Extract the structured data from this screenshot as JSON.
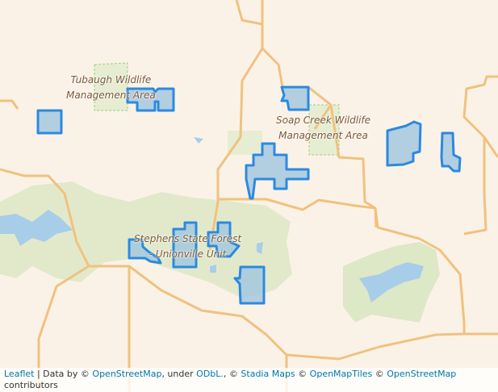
{
  "map": {
    "labels": [
      {
        "line1": "Tubaugh Wildlife",
        "line2": "Management Area"
      },
      {
        "line1": "Soap Creek Wildlife",
        "line2": "Management Area"
      },
      {
        "line1": "Stephens State Forest",
        "line2": "- Unionville Unit"
      }
    ],
    "colors": {
      "background": "#fbf2e7",
      "road": "#f0c27f",
      "park": "#dde8c6",
      "water": "#a8cde9",
      "polygon_fill": "#a5c8df",
      "polygon_stroke": "#2b8ae0"
    }
  },
  "attribution": {
    "leaflet": "Leaflet",
    "sep": " | Data by © ",
    "osm": "OpenStreetMap",
    "under": ", under ",
    "odbl": "ODbL.",
    "c1": ", © ",
    "stadia": "Stadia Maps",
    "c2": " © ",
    "omt": "OpenMapTiles",
    "c3": " © ",
    "osm2": "OpenStreetMap",
    "contrib": " contributors"
  }
}
